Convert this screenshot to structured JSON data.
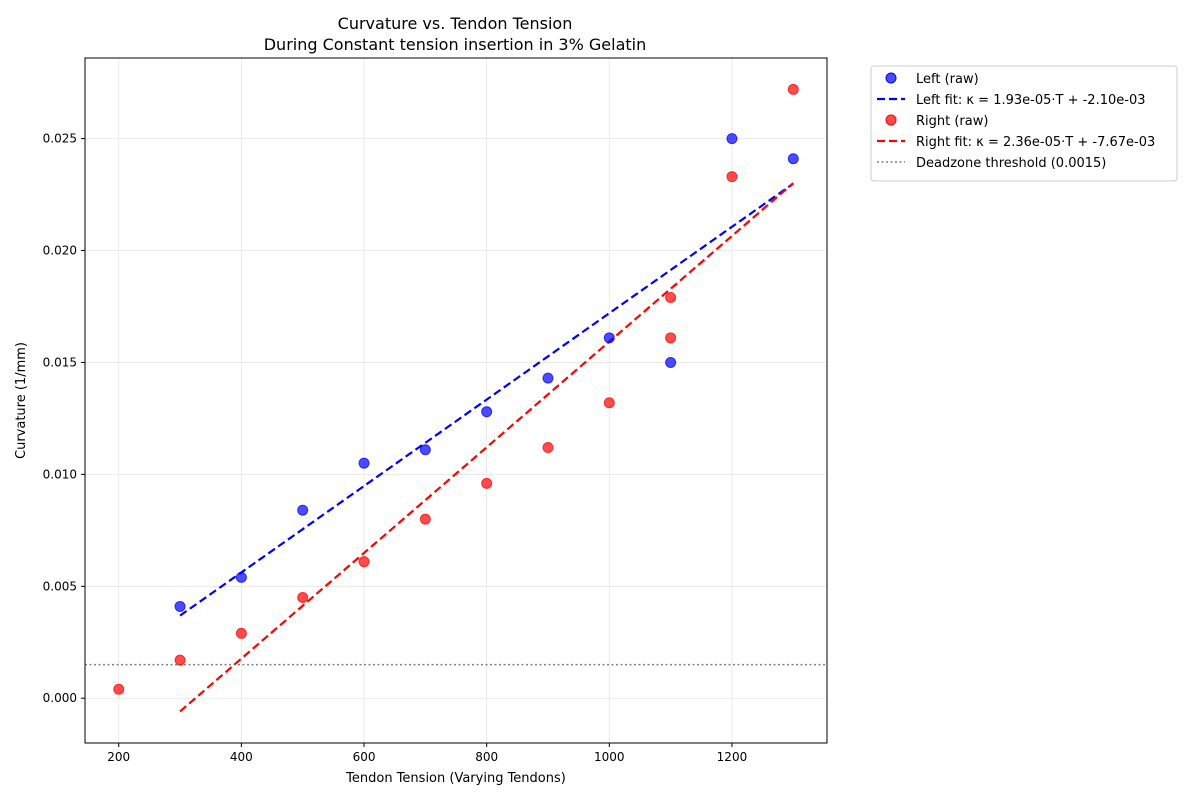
{
  "chart_data": {
    "type": "scatter",
    "title": "Curvature vs. Tendon Tension",
    "subtitle": "During Constant tension insertion in 3% Gelatin",
    "xlabel": "Tendon Tension (Varying Tendons)",
    "ylabel": "Curvature (1/mm)",
    "xlim": [
      145,
      1355
    ],
    "ylim": [
      -0.002,
      0.0286
    ],
    "x_ticks": [
      200,
      400,
      600,
      800,
      1000,
      1200
    ],
    "x_tick_labels": [
      "200",
      "400",
      "600",
      "800",
      "1000",
      "1200"
    ],
    "y_ticks": [
      0.0,
      0.005,
      0.01,
      0.015,
      0.02,
      0.025
    ],
    "y_tick_labels": [
      "0.000",
      "0.005",
      "0.010",
      "0.015",
      "0.020",
      "0.025"
    ],
    "grid": true,
    "legend_position": "outside-top-right",
    "series": [
      {
        "name": "Left (raw)",
        "kind": "scatter",
        "color": "#0000ff",
        "x": [
          300,
          400,
          500,
          600,
          700,
          800,
          900,
          1000,
          1100,
          1200,
          1300
        ],
        "y": [
          0.0041,
          0.0054,
          0.0084,
          0.0105,
          0.0111,
          0.0128,
          0.0143,
          0.0161,
          0.015,
          0.025,
          0.0241
        ]
      },
      {
        "name": "Left fit: κ = 1.93e-05·T + -2.10e-03",
        "kind": "line",
        "style": "dashed",
        "color": "#0000ff",
        "x": [
          300,
          1300
        ],
        "y": [
          0.00369,
          0.02299
        ]
      },
      {
        "name": "Right (raw)",
        "kind": "scatter",
        "color": "#ff0000",
        "x": [
          200,
          300,
          400,
          500,
          600,
          700,
          800,
          900,
          1000,
          1100,
          1100,
          1200,
          1300
        ],
        "y": [
          0.0004,
          0.0017,
          0.0029,
          0.0045,
          0.0061,
          0.008,
          0.0096,
          0.0112,
          0.0132,
          0.0179,
          0.0161,
          0.0233,
          0.0272
        ]
      },
      {
        "name": "Right fit: κ = 2.36e-05·T + -7.67e-03",
        "kind": "line",
        "style": "dashed",
        "color": "#ff0000",
        "x": [
          300,
          1300
        ],
        "y": [
          -0.00059,
          0.02301
        ]
      },
      {
        "name": "Deadzone threshold (0.0015)",
        "kind": "hline",
        "style": "dotted",
        "color": "#808080",
        "y": 0.0015
      }
    ]
  }
}
